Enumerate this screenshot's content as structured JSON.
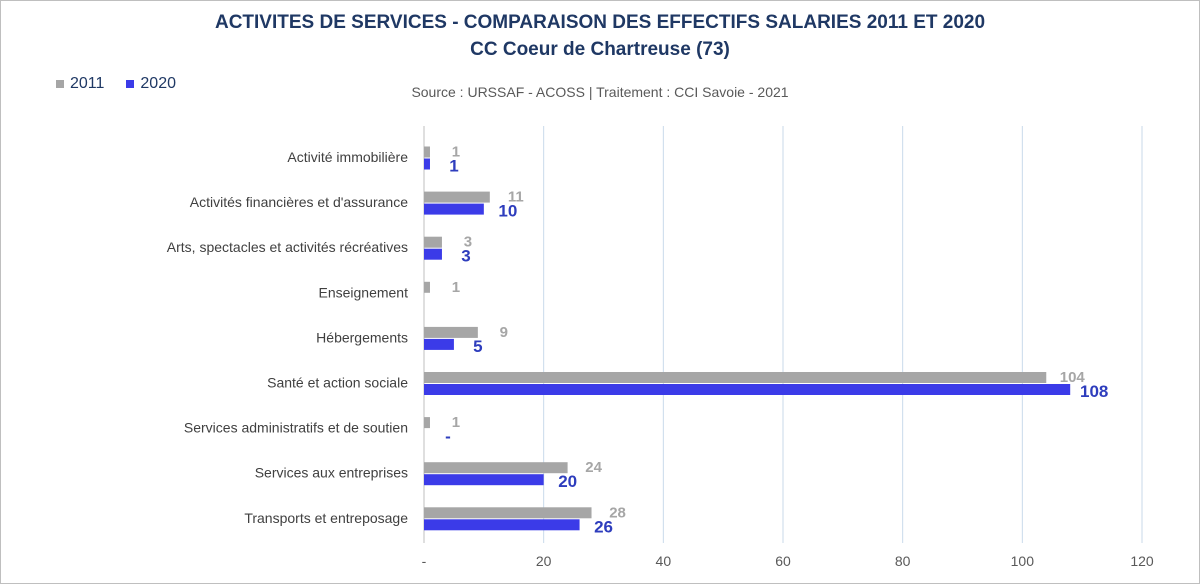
{
  "chart_data": {
    "type": "bar",
    "orientation": "horizontal",
    "title": "ACTIVITES DE SERVICES - COMPARAISON DES EFFECTIFS SALARIES 2011 ET 2020",
    "subtitle": "CC Coeur de Chartreuse (73)",
    "source": "Source  : URSSAF - ACOSS  |  Traitement : CCI Savoie - 2021",
    "categories": [
      "Activité immobilière",
      "Activités financières et d'assurance",
      "Arts, spectacles et activités récréatives",
      "Enseignement",
      "Hébergements",
      "Santé et action sociale",
      "Services administratifs et de soutien",
      "Services aux entreprises",
      "Transports et entreposage"
    ],
    "series": [
      {
        "name": "2011",
        "color": "#a6a6a6",
        "values": [
          1,
          11,
          3,
          1,
          9,
          104,
          1,
          24,
          28
        ],
        "labels": [
          "1",
          "11",
          "3",
          "1",
          "9",
          "104",
          "1",
          "24",
          "28"
        ]
      },
      {
        "name": "2020",
        "color": "#3b3be8",
        "values": [
          1,
          10,
          3,
          null,
          5,
          108,
          0,
          20,
          26
        ],
        "labels": [
          "1",
          "10",
          "3",
          "",
          "5",
          "108",
          "-",
          "20",
          "26"
        ]
      }
    ],
    "xlim": [
      0,
      120
    ],
    "xticks": [
      0,
      20,
      40,
      60,
      80,
      100,
      120
    ],
    "xtick_labels": [
      "-",
      "20",
      "40",
      "60",
      "80",
      "100",
      "120"
    ],
    "grid": true,
    "legend_position": "top-left"
  }
}
